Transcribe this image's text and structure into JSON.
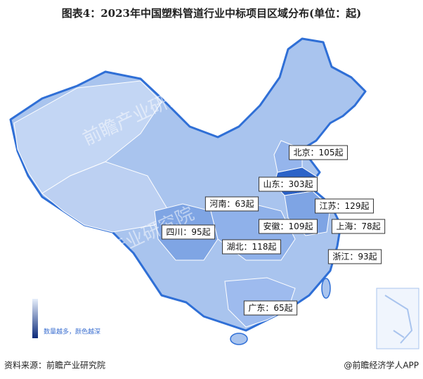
{
  "title": "图表4：2023年中国塑料管道行业中标项目区域分布(单位：起)",
  "regions": [
    {
      "label": "北京：105起"
    },
    {
      "label": "山东：303起"
    },
    {
      "label": "河南：63起"
    },
    {
      "label": "江苏：129起"
    },
    {
      "label": "安徽：109起"
    },
    {
      "label": "上海：78起"
    },
    {
      "label": "四川：95起"
    },
    {
      "label": "湖北：118起"
    },
    {
      "label": "浙江：93起"
    },
    {
      "label": "广东：65起"
    }
  ],
  "legend": "数量越多，颜色越深",
  "watermark": "前瞻产业研究院",
  "source": "资料来源：前瞻产业研究院",
  "credit": "@前瞻经济学人APP"
}
